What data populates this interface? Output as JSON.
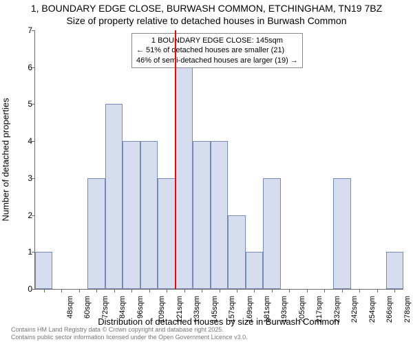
{
  "title_line1": "1, BOUNDARY EDGE CLOSE, BURWASH COMMON, ETCHINGHAM, TN19 7BZ",
  "title_line2": "Size of property relative to detached houses in Burwash Common",
  "ylabel": "Number of detached properties",
  "xlabel": "Distribution of detached houses by size in Burwash Common",
  "footer_line1": "Contains HM Land Registry data © Crown copyright and database right 2025.",
  "footer_line2": "Contains public sector information licensed under the Open Government Licence v3.0.",
  "chart": {
    "type": "histogram",
    "background_color": "#ffffff",
    "axis_color": "#6b6b6b",
    "bar_fill": "#d5ddee",
    "bar_border": "#758ab6",
    "marker_color": "#ff0000",
    "ylim": [
      0,
      7
    ],
    "ytick_step": 1,
    "yticks": [
      0,
      1,
      2,
      3,
      4,
      5,
      6,
      7
    ],
    "label_fontsize": 13,
    "tick_fontsize": 11,
    "title_fontsize": 14,
    "categories": [
      "48sqm",
      "60sqm",
      "72sqm",
      "84sqm",
      "96sqm",
      "109sqm",
      "121sqm",
      "133sqm",
      "145sqm",
      "157sqm",
      "169sqm",
      "181sqm",
      "193sqm",
      "205sqm",
      "217sqm",
      "232sqm",
      "242sqm",
      "254sqm",
      "266sqm",
      "278sqm",
      "290sqm"
    ],
    "values": [
      1,
      0,
      0,
      3,
      5,
      4,
      4,
      3,
      6,
      4,
      4,
      2,
      1,
      3,
      0,
      0,
      0,
      3,
      0,
      0,
      1
    ],
    "marker_index": 8,
    "bar_width": 1.0
  },
  "legend": {
    "line1": "1 BOUNDARY EDGE CLOSE: 145sqm",
    "line2": "← 51% of detached houses are smaller (21)",
    "line3": "46% of semi-detached houses are larger (19) →",
    "border_color": "#888888",
    "background_color": "#ffffff",
    "fontsize": 11
  }
}
